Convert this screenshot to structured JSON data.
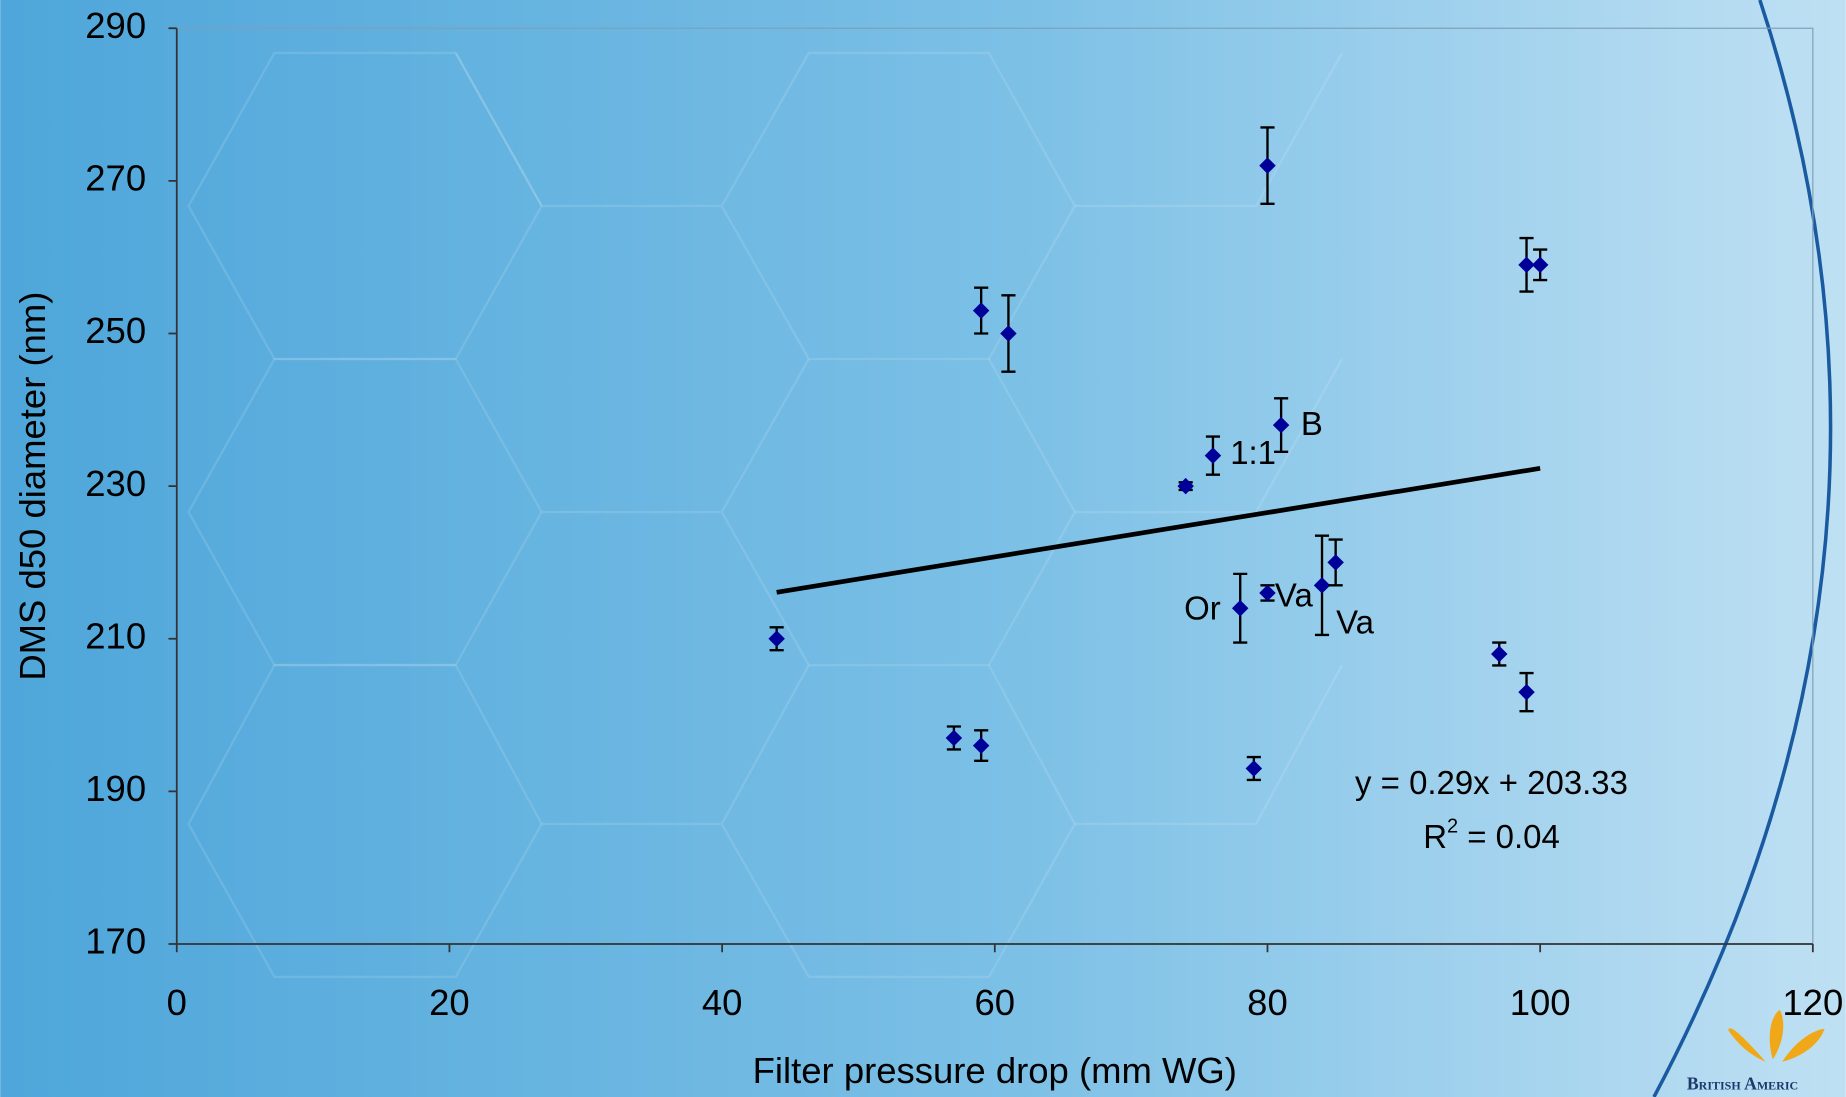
{
  "chart_data": {
    "type": "scatter",
    "x_label": "Filter pressure drop (mm WG)",
    "y_label": "DMS d50 diameter (nm)",
    "x": [
      44,
      57,
      59,
      59,
      61,
      74,
      76,
      78,
      79,
      80,
      80,
      81,
      84,
      85,
      97,
      99,
      99,
      100
    ],
    "values": [
      210,
      197,
      196,
      253,
      250,
      230,
      234,
      214,
      193,
      272,
      216,
      238,
      217,
      220,
      208,
      203,
      259,
      259
    ],
    "errors": [
      1.5,
      1.5,
      2,
      3,
      5,
      0.5,
      2.5,
      4.5,
      1.5,
      5,
      1,
      3.5,
      6.5,
      3,
      1.5,
      2.5,
      3.5,
      2
    ],
    "color": "#000099",
    "xlim": [
      0,
      120
    ],
    "xticks": [
      0,
      20,
      40,
      60,
      80,
      100,
      120
    ],
    "ylim": [
      170,
      290
    ],
    "yticks": [
      170,
      190,
      210,
      230,
      250,
      270,
      290
    ],
    "trendline": {
      "slope": 0.29,
      "intercept": 203.33,
      "color": "#000000",
      "equation": "y = 0.29x + 203.33",
      "r2_base": "R",
      "r2_sup": "2",
      "r2_rest": " = 0.04"
    },
    "annotations": [
      "1:1",
      "B",
      "Or",
      "Va",
      "Va"
    ],
    "logo_text": "British Americ"
  }
}
